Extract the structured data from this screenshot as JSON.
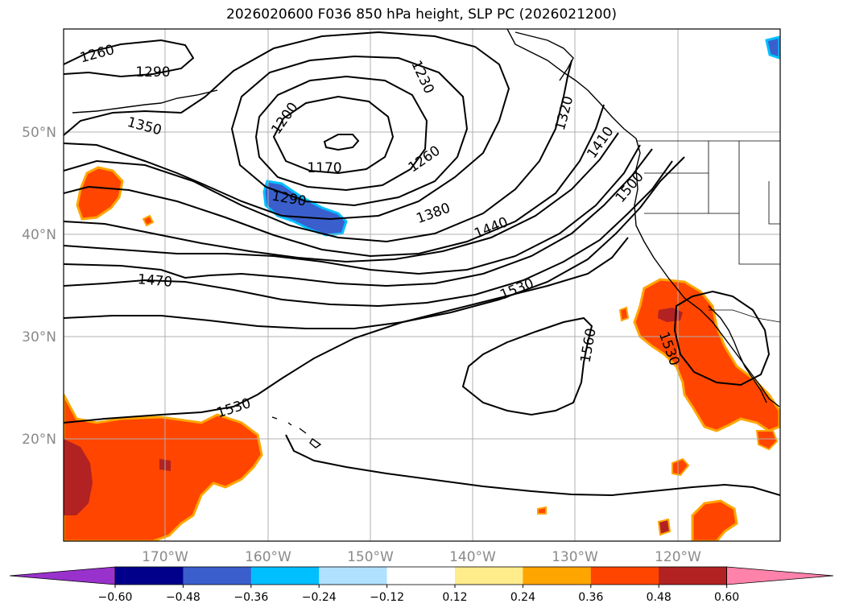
{
  "title": "2026020600 F036 850 hPa height, SLP PC (2026021200)",
  "latitude_labels": [
    "50°N",
    "40°N",
    "30°N",
    "20°N"
  ],
  "longitude_labels": [
    "170°W",
    "160°W",
    "150°W",
    "140°W",
    "130°W",
    "120°W"
  ],
  "contour_labels": [
    "1260",
    "1290",
    "1350",
    "1200",
    "1170",
    "1290",
    "1230",
    "1260",
    "1320",
    "1410",
    "1500",
    "1380",
    "1440",
    "1470",
    "1530",
    "1560",
    "1530",
    "1530"
  ],
  "colorbar": {
    "tick_labels": [
      "−0.60",
      "−0.48",
      "−0.36",
      "−0.24",
      "−0.12",
      "0.12",
      "0.24",
      "0.36",
      "0.48",
      "0.60"
    ],
    "colors": [
      "#9932cc",
      "#00008b",
      "#3a5fcd",
      "#00bfff",
      "#b0e2ff",
      "#ffffff",
      "#ffec8b",
      "#ffa500",
      "#ff4500",
      "#b22222",
      "#ff82ab",
      "#ff82ab"
    ]
  },
  "colors": {
    "positive_high": "#b22222",
    "positive": "#ff4500",
    "positive_edge": "#ffa500",
    "positive_low": "#ffec8b",
    "negative": "#3a5fcd",
    "negative_edge": "#00bfff"
  }
}
